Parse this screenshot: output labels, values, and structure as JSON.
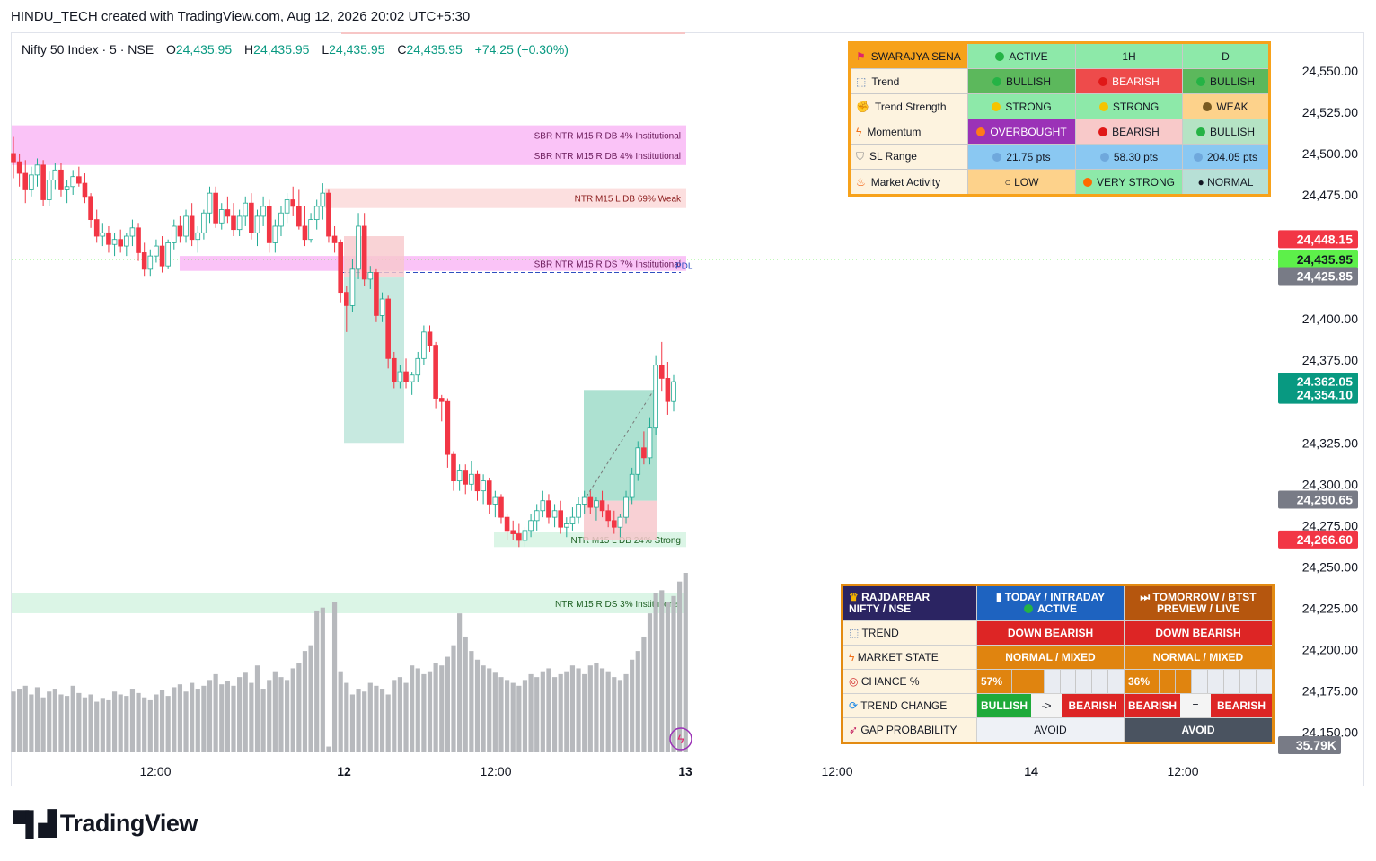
{
  "caption": "HINDU_TECH created with TradingView.com, Aug 12, 2026 20:02 UTC+5:30",
  "legend": {
    "symbol": "Nifty 50 Index · 5 · NSE",
    "o_label": "O",
    "o": "24,435.95",
    "h_label": "H",
    "h": "24,435.95",
    "l_label": "L",
    "l": "24,435.95",
    "c_label": "C",
    "c": "24,435.95",
    "change": "+74.25 (+0.30%)"
  },
  "brand": "TradingView",
  "chart_data": {
    "type": "candlestick",
    "ylim": [
      24140,
      24570
    ],
    "y_ticks": [
      "24,550.00",
      "24,525.00",
      "24,500.00",
      "24,475.00",
      "24,400.00",
      "24,375.00",
      "24,325.00",
      "24,300.00",
      "24,275.00",
      "24,250.00",
      "24,225.00",
      "24,200.00",
      "24,175.00",
      "24,150.00"
    ],
    "y_tick_values": [
      24550,
      24525,
      24500,
      24475,
      24400,
      24375,
      24325,
      24300,
      24275,
      24250,
      24225,
      24200,
      24175,
      24150
    ],
    "x_ticks": [
      "12:00",
      "12",
      "12:00",
      "13",
      "12:00",
      "14",
      "12:00"
    ],
    "price_labels": [
      {
        "value": 24448.15,
        "text": "24,448.15",
        "color": "#f23645"
      },
      {
        "value": 24435.95,
        "text": "24,435.95",
        "color": "#5df04a",
        "text_color": "#131722"
      },
      {
        "value": 24425.85,
        "text": "24,425.85",
        "color": "#787b86"
      },
      {
        "value": 24362.05,
        "text": "24,362.05",
        "color": "#089981"
      },
      {
        "value": 24354.1,
        "text": "24,354.10",
        "color": "#089981"
      },
      {
        "value": 24290.65,
        "text": "24,290.65",
        "color": "#787b86"
      },
      {
        "value": 24266.6,
        "text": "24,266.60",
        "color": "#f23645"
      }
    ],
    "volume_label": "35.79K",
    "zones": [
      {
        "label": "SBR NTR M15 R DB 4% Institutional",
        "top": 24505,
        "bottom": 24493,
        "color": "#f9b8f6"
      },
      {
        "label": "SBR NTR M15 R DB 4% Institutional",
        "top": 24517,
        "bottom": 24505,
        "color": "#f9b8f6"
      },
      {
        "label": "NTR M15 L DB 69% Weak",
        "top": 24479,
        "bottom": 24467,
        "color": "#fbd9d9"
      },
      {
        "label": "SBR NTR M15 R DS 7% Institutional",
        "top": 24438,
        "bottom": 24429,
        "color": "#f9b8f6"
      },
      {
        "label": "NTR M15 L DB 24% Strong",
        "top": 24271,
        "bottom": 24262,
        "color": "#d5f3e2"
      },
      {
        "label": "NTR M15 R DS 3% Institutional",
        "top": 24234,
        "bottom": 24222,
        "color": "#d5f3e2"
      }
    ],
    "pdl_label": "PDL",
    "candles": [
      [
        24500,
        24510,
        24485,
        24495
      ],
      [
        24495,
        24500,
        24480,
        24488
      ],
      [
        24488,
        24496,
        24470,
        24478
      ],
      [
        24478,
        24492,
        24474,
        24487
      ],
      [
        24487,
        24497,
        24480,
        24493
      ],
      [
        24493,
        24496,
        24468,
        24472
      ],
      [
        24472,
        24489,
        24468,
        24484
      ],
      [
        24484,
        24494,
        24478,
        24490
      ],
      [
        24490,
        24494,
        24474,
        24478
      ],
      [
        24478,
        24484,
        24470,
        24480
      ],
      [
        24480,
        24490,
        24475,
        24486
      ],
      [
        24486,
        24492,
        24480,
        24482
      ],
      [
        24482,
        24488,
        24470,
        24474
      ],
      [
        24474,
        24476,
        24455,
        24460
      ],
      [
        24460,
        24466,
        24446,
        24450
      ],
      [
        24450,
        24458,
        24444,
        24452
      ],
      [
        24452,
        24456,
        24440,
        24445
      ],
      [
        24445,
        24452,
        24438,
        24448
      ],
      [
        24448,
        24454,
        24440,
        24444
      ],
      [
        24444,
        24452,
        24438,
        24450
      ],
      [
        24450,
        24460,
        24444,
        24455
      ],
      [
        24455,
        24458,
        24435,
        24440
      ],
      [
        24440,
        24446,
        24426,
        24430
      ],
      [
        24430,
        24442,
        24426,
        24438
      ],
      [
        24438,
        24448,
        24434,
        24444
      ],
      [
        24444,
        24450,
        24428,
        24432
      ],
      [
        24432,
        24448,
        24430,
        24446
      ],
      [
        24446,
        24460,
        24442,
        24456
      ],
      [
        24456,
        24462,
        24446,
        24450
      ],
      [
        24450,
        24466,
        24446,
        24462
      ],
      [
        24462,
        24470,
        24444,
        24448
      ],
      [
        24448,
        24456,
        24440,
        24452
      ],
      [
        24452,
        24466,
        24448,
        24464
      ],
      [
        24464,
        24480,
        24458,
        24476
      ],
      [
        24476,
        24480,
        24455,
        24458
      ],
      [
        24458,
        24470,
        24454,
        24466
      ],
      [
        24466,
        24474,
        24458,
        24462
      ],
      [
        24462,
        24470,
        24450,
        24454
      ],
      [
        24454,
        24466,
        24450,
        24462
      ],
      [
        24462,
        24474,
        24456,
        24470
      ],
      [
        24470,
        24476,
        24448,
        24452
      ],
      [
        24452,
        24466,
        24444,
        24462
      ],
      [
        24462,
        24474,
        24456,
        24468
      ],
      [
        24468,
        24472,
        24440,
        24446
      ],
      [
        24446,
        24460,
        24440,
        24456
      ],
      [
        24456,
        24468,
        24450,
        24464
      ],
      [
        24464,
        24476,
        24458,
        24472
      ],
      [
        24472,
        24480,
        24462,
        24468
      ],
      [
        24468,
        24478,
        24454,
        24456
      ],
      [
        24456,
        24468,
        24444,
        24448
      ],
      [
        24448,
        24464,
        24446,
        24460
      ],
      [
        24460,
        24472,
        24454,
        24468
      ],
      [
        24468,
        24482,
        24460,
        24476
      ],
      [
        24476,
        24478,
        24446,
        24450
      ],
      [
        24450,
        24456,
        24440,
        24446
      ],
      [
        24446,
        24448,
        24410,
        24416
      ],
      [
        24416,
        24420,
        24392,
        24408
      ],
      [
        24408,
        24436,
        24404,
        24430
      ],
      [
        24430,
        24464,
        24424,
        24456
      ],
      [
        24456,
        24464,
        24420,
        24424
      ],
      [
        24424,
        24432,
        24418,
        24428
      ],
      [
        24428,
        24430,
        24398,
        24402
      ],
      [
        24402,
        24416,
        24398,
        24412
      ],
      [
        24412,
        24414,
        24370,
        24376
      ],
      [
        24376,
        24380,
        24358,
        24362
      ],
      [
        24362,
        24372,
        24358,
        24368
      ],
      [
        24368,
        24376,
        24358,
        24362
      ],
      [
        24362,
        24368,
        24354,
        24366
      ],
      [
        24366,
        24380,
        24362,
        24376
      ],
      [
        24376,
        24396,
        24372,
        24392
      ],
      [
        24392,
        24396,
        24380,
        24384
      ],
      [
        24384,
        24386,
        24346,
        24352
      ],
      [
        24352,
        24354,
        24338,
        24350
      ],
      [
        24350,
        24352,
        24310,
        24318
      ],
      [
        24318,
        24320,
        24296,
        24302
      ],
      [
        24302,
        24312,
        24296,
        24308
      ],
      [
        24308,
        24312,
        24294,
        24300
      ],
      [
        24300,
        24314,
        24296,
        24306
      ],
      [
        24306,
        24308,
        24290,
        24296
      ],
      [
        24296,
        24306,
        24288,
        24302
      ],
      [
        24302,
        24304,
        24282,
        24288
      ],
      [
        24288,
        24296,
        24280,
        24292
      ],
      [
        24292,
        24294,
        24276,
        24280
      ],
      [
        24280,
        24282,
        24266,
        24272
      ],
      [
        24272,
        24278,
        24266,
        24270
      ],
      [
        24270,
        24276,
        24262,
        24266
      ],
      [
        24266,
        24274,
        24262,
        24272
      ],
      [
        24272,
        24282,
        24268,
        24278
      ],
      [
        24278,
        24288,
        24272,
        24284
      ],
      [
        24284,
        24296,
        24280,
        24290
      ],
      [
        24290,
        24294,
        24276,
        24280
      ],
      [
        24280,
        24288,
        24274,
        24284
      ],
      [
        24284,
        24290,
        24270,
        24274
      ],
      [
        24274,
        24280,
        24268,
        24276
      ],
      [
        24276,
        24286,
        24272,
        24280
      ],
      [
        24280,
        24292,
        24276,
        24288
      ],
      [
        24288,
        24296,
        24282,
        24292
      ],
      [
        24292,
        24296,
        24282,
        24286
      ],
      [
        24286,
        24292,
        24278,
        24290
      ],
      [
        24290,
        24296,
        24280,
        24284
      ],
      [
        24284,
        24288,
        24274,
        24278
      ],
      [
        24278,
        24284,
        24270,
        24274
      ],
      [
        24274,
        24282,
        24268,
        24280
      ],
      [
        24280,
        24296,
        24276,
        24292
      ],
      [
        24292,
        24310,
        24288,
        24306
      ],
      [
        24306,
        24326,
        24302,
        24322
      ],
      [
        24322,
        24332,
        24312,
        24316
      ],
      [
        24316,
        24340,
        24312,
        24334
      ],
      [
        24334,
        24378,
        24330,
        24372
      ],
      [
        24372,
        24386,
        24356,
        24364
      ],
      [
        24364,
        24374,
        24342,
        24350
      ],
      [
        24350,
        24366,
        24344,
        24362
      ]
    ],
    "volume": [
      42,
      44,
      46,
      40,
      45,
      38,
      42,
      44,
      40,
      39,
      46,
      41,
      38,
      40,
      35,
      37,
      36,
      42,
      40,
      39,
      44,
      41,
      38,
      36,
      40,
      43,
      39,
      45,
      47,
      42,
      48,
      44,
      46,
      50,
      54,
      47,
      49,
      46,
      52,
      55,
      48,
      60,
      44,
      50,
      56,
      52,
      50,
      58,
      62,
      70,
      74,
      98,
      100,
      4,
      104,
      56,
      48,
      40,
      44,
      42,
      48,
      46,
      44,
      40,
      50,
      52,
      48,
      60,
      58,
      54,
      56,
      62,
      60,
      66,
      74,
      96,
      80,
      70,
      64,
      60,
      58,
      55,
      52,
      50,
      48,
      46,
      50,
      54,
      52,
      56,
      58,
      52,
      54,
      56,
      60,
      58,
      54,
      60,
      62,
      58,
      56,
      52,
      50,
      54,
      64,
      70,
      80,
      96,
      110,
      112,
      104,
      108,
      118,
      124
    ]
  },
  "panel1": {
    "rows": [
      {
        "icon": "flag-icon",
        "label": "SWARAJYA SENA",
        "cells": [
          {
            "dot": "#25b345",
            "text": "ACTIVE",
            "bg": "#8de9a9"
          },
          {
            "dot": "",
            "text": "1H",
            "bg": "#8de9a9"
          },
          {
            "dot": "",
            "text": "D",
            "bg": "#8de9a9"
          }
        ]
      },
      {
        "icon": "chart-icon",
        "label": "Trend",
        "cells": [
          {
            "dot": "#25b345",
            "text": "BULLISH",
            "bg": "#5cb85c"
          },
          {
            "dot": "#e01818",
            "text": "BEARISH",
            "bg": "#ee4b4b",
            "fg": "#ffffff"
          },
          {
            "dot": "#25b345",
            "text": "BULLISH",
            "bg": "#5cb85c"
          }
        ]
      },
      {
        "icon": "muscle-icon",
        "label": "Trend Strength",
        "cells": [
          {
            "dot": "#f5c400",
            "text": "STRONG",
            "bg": "#8de9a9"
          },
          {
            "dot": "#f5c400",
            "text": "STRONG",
            "bg": "#8de9a9"
          },
          {
            "dot": "#7a5a20",
            "text": "WEAK",
            "bg": "#fdd28b"
          }
        ]
      },
      {
        "icon": "bolt-icon",
        "label": "Momentum",
        "cells": [
          {
            "dot": "#ff7a1a",
            "text": "OVERBOUGHT",
            "bg": "#9b32b7",
            "fg": "#ffffff"
          },
          {
            "dot": "#e01818",
            "text": "BEARISH",
            "bg": "#f8c9c9"
          },
          {
            "dot": "#25b345",
            "text": "BULLISH",
            "bg": "#b5e3c4"
          }
        ]
      },
      {
        "icon": "shield-icon",
        "label": "SL Range",
        "cells": [
          {
            "dot": "#6fa8dc",
            "text": "21.75 pts",
            "bg": "#8ac8f2"
          },
          {
            "dot": "#6fa8dc",
            "text": "58.30 pts",
            "bg": "#8ac8f2"
          },
          {
            "dot": "#6fa8dc",
            "text": "204.05 pts",
            "bg": "#8ac8f2"
          }
        ]
      },
      {
        "icon": "fire-icon",
        "label": "Market Activity",
        "cells": [
          {
            "dot": "",
            "text": "○ LOW",
            "bg": "#fdd28b"
          },
          {
            "dot": "#ff6a00",
            "text": "VERY STRONG",
            "bg": "#8de9a9"
          },
          {
            "dot": "",
            "text": "● NORMAL",
            "bg": "#b7e0d6"
          }
        ]
      }
    ]
  },
  "panel2": {
    "header": {
      "title": "RAJDARBAR",
      "sub": "NIFTY / NSE",
      "today_title": "TODAY / INTRADAY",
      "today_sub": "ACTIVE",
      "tomorrow_title": "TOMORROW / BTST",
      "tomorrow_sub": "PREVIEW / LIVE"
    },
    "trend": {
      "label": "TREND",
      "today": "DOWN  BEARISH",
      "tomorrow": "DOWN  BEARISH"
    },
    "market_state": {
      "label": "MARKET STATE",
      "today": "NORMAL / MIXED",
      "tomorrow": "NORMAL / MIXED"
    },
    "chance": {
      "label": "CHANCE %",
      "today": "57%",
      "tomorrow": "36%",
      "today_filled": 2,
      "tomorrow_filled": 2
    },
    "trend_change": {
      "label": "TREND CHANGE",
      "t_from": "BULLISH",
      "t_arrow": "->",
      "t_to": "BEARISH",
      "m_from": "BEARISH",
      "m_arrow": "=",
      "m_to": "BEARISH"
    },
    "gap": {
      "label": "GAP PROBABILITY",
      "today": "AVOID",
      "tomorrow": "AVOID"
    }
  }
}
